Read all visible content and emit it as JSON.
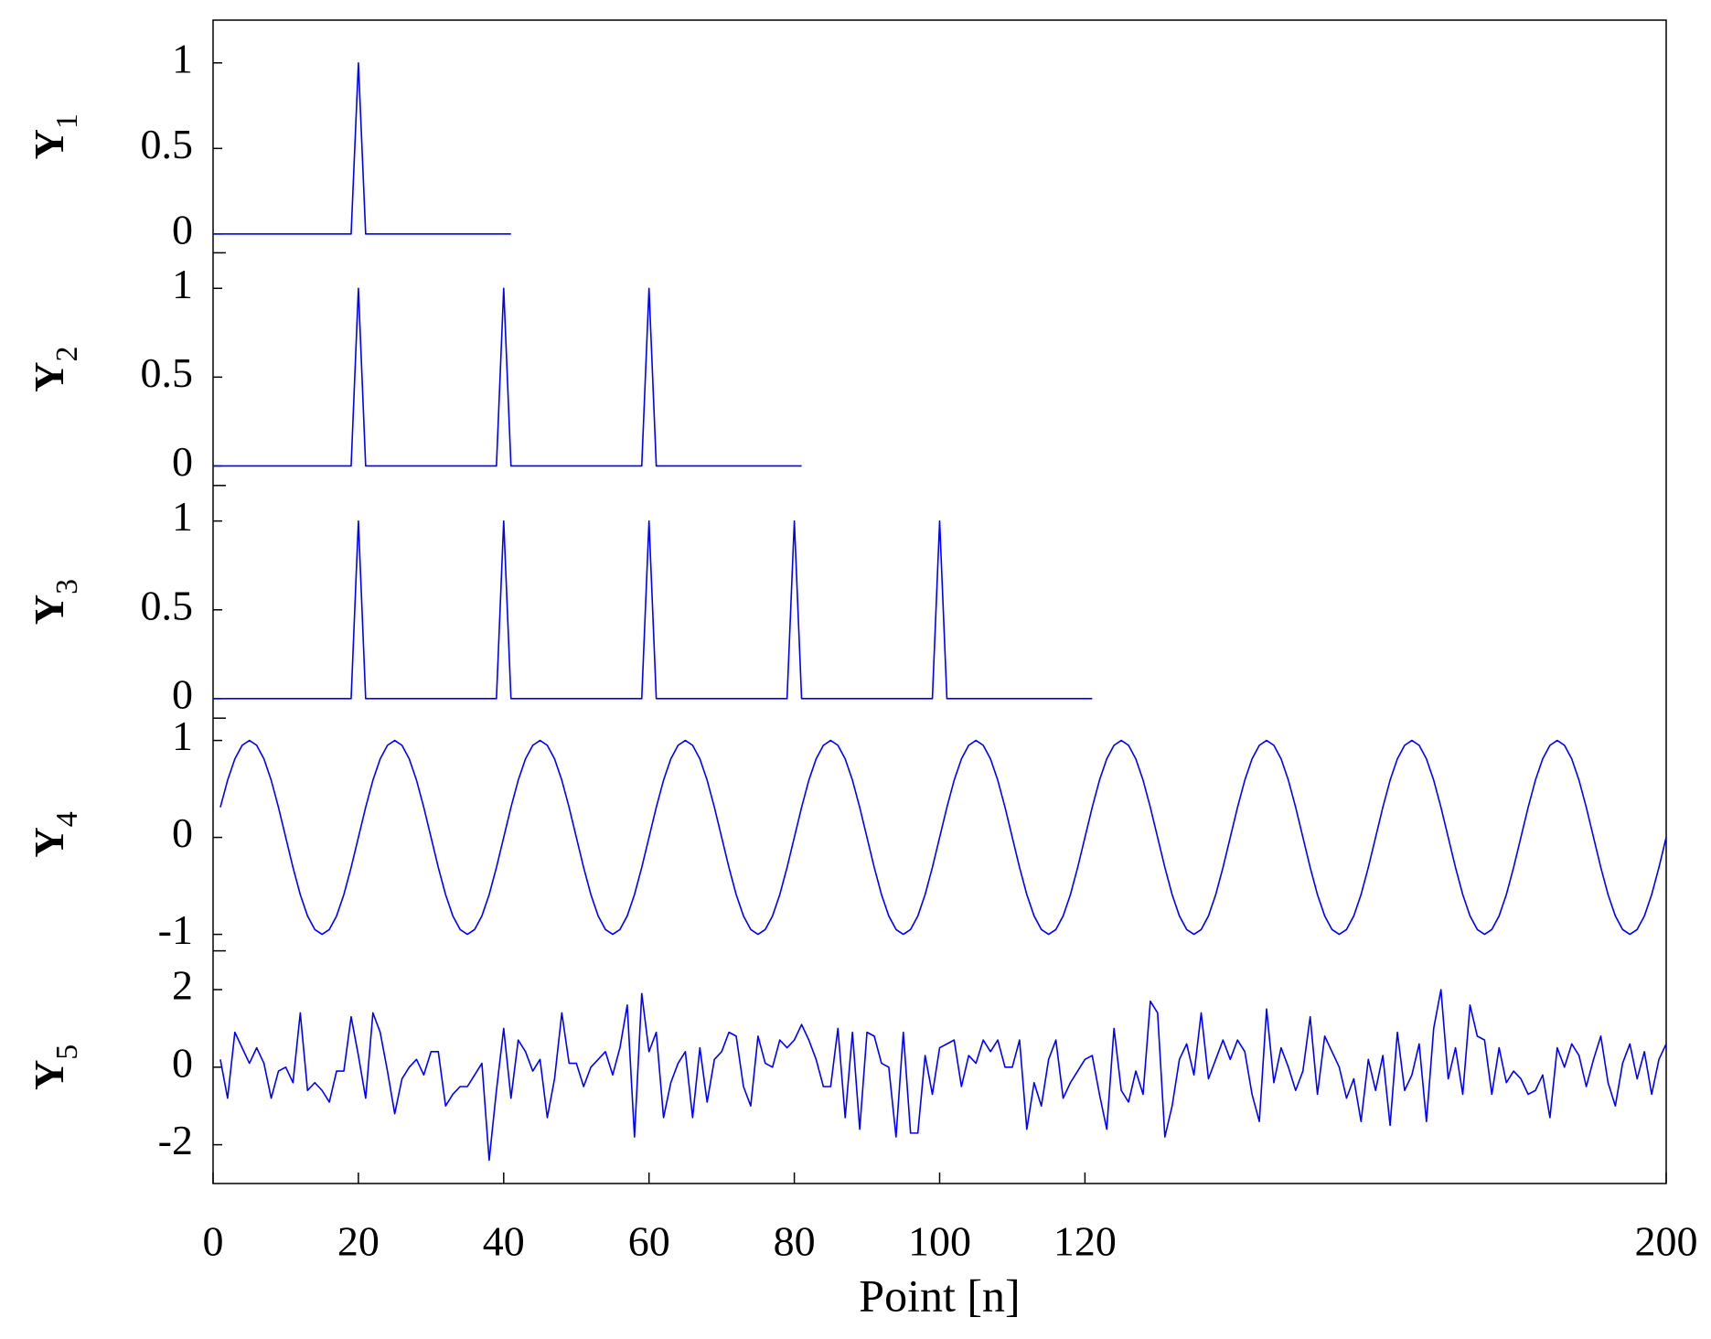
{
  "chart_data": [
    {
      "type": "line",
      "ylabel": "Y1",
      "color": "#0000ff",
      "x": [
        0,
        19,
        20,
        21,
        41
      ],
      "values": [
        0,
        0,
        1,
        0,
        0
      ],
      "xlim": [
        0,
        200
      ],
      "ylim": [
        -0.11,
        1.25
      ],
      "yticks": [
        0,
        0.5,
        1
      ]
    },
    {
      "type": "line",
      "ylabel": "Y2",
      "color": "#0000ff",
      "x": [
        0,
        19,
        20,
        21,
        39,
        40,
        41,
        59,
        60,
        61,
        81
      ],
      "values": [
        0,
        0,
        1,
        0,
        0,
        1,
        0,
        0,
        1,
        0,
        0
      ],
      "xlim": [
        0,
        200
      ],
      "ylim": [
        -0.11,
        1.2
      ],
      "yticks": [
        0,
        0.5,
        1
      ]
    },
    {
      "type": "line",
      "ylabel": "Y3",
      "color": "#0000ff",
      "x": [
        0,
        19,
        20,
        21,
        39,
        40,
        41,
        59,
        60,
        61,
        79,
        80,
        81,
        99,
        100,
        101,
        121
      ],
      "values": [
        0,
        0,
        1,
        0,
        0,
        1,
        0,
        0,
        1,
        0,
        0,
        1,
        0,
        0,
        1,
        0,
        0
      ],
      "xlim": [
        0,
        200
      ],
      "ylim": [
        -0.11,
        1.2
      ],
      "yticks": [
        0,
        0.5,
        1
      ]
    },
    {
      "type": "line",
      "ylabel": "Y4",
      "color": "#0000ff",
      "x": [
        1,
        2,
        3,
        4,
        5,
        6,
        7,
        8,
        9,
        10,
        11,
        12,
        13,
        14,
        15,
        16,
        17,
        18,
        19,
        20,
        21,
        22,
        23,
        24,
        25,
        26,
        27,
        28,
        29,
        30,
        31,
        32,
        33,
        34,
        35,
        36,
        37,
        38,
        39,
        40,
        41,
        42,
        43,
        44,
        45,
        46,
        47,
        48,
        49,
        50,
        51,
        52,
        53,
        54,
        55,
        56,
        57,
        58,
        59,
        60,
        61,
        62,
        63,
        64,
        65,
        66,
        67,
        68,
        69,
        70,
        71,
        72,
        73,
        74,
        75,
        76,
        77,
        78,
        79,
        80,
        81,
        82,
        83,
        84,
        85,
        86,
        87,
        88,
        89,
        90,
        91,
        92,
        93,
        94,
        95,
        96,
        97,
        98,
        99,
        100,
        101,
        102,
        103,
        104,
        105,
        106,
        107,
        108,
        109,
        110,
        111,
        112,
        113,
        114,
        115,
        116,
        117,
        118,
        119,
        120,
        121,
        122,
        123,
        124,
        125,
        126,
        127,
        128,
        129,
        130,
        131,
        132,
        133,
        134,
        135,
        136,
        137,
        138,
        139,
        140,
        141,
        142,
        143,
        144,
        145,
        146,
        147,
        148,
        149,
        150,
        151,
        152,
        153,
        154,
        155,
        156,
        157,
        158,
        159,
        160,
        161,
        162,
        163,
        164,
        165,
        166,
        167,
        168,
        169,
        170,
        171,
        172,
        173,
        174,
        175,
        176,
        177,
        178,
        179,
        180,
        181,
        182,
        183,
        184,
        185,
        186,
        187,
        188,
        189,
        190,
        191,
        192,
        193,
        194,
        195,
        196,
        197,
        198,
        199,
        200
      ],
      "values": [
        0.31,
        0.59,
        0.81,
        0.95,
        1,
        0.95,
        0.81,
        0.59,
        0.31,
        0,
        -0.31,
        -0.59,
        -0.81,
        -0.95,
        -1,
        -0.95,
        -0.81,
        -0.59,
        -0.31,
        0,
        0.31,
        0.59,
        0.81,
        0.95,
        1,
        0.95,
        0.81,
        0.59,
        0.31,
        0,
        -0.31,
        -0.59,
        -0.81,
        -0.95,
        -1,
        -0.95,
        -0.81,
        -0.59,
        -0.31,
        0,
        0.31,
        0.59,
        0.81,
        0.95,
        1,
        0.95,
        0.81,
        0.59,
        0.31,
        0,
        -0.31,
        -0.59,
        -0.81,
        -0.95,
        -1,
        -0.95,
        -0.81,
        -0.59,
        -0.31,
        0,
        0.31,
        0.59,
        0.81,
        0.95,
        1,
        0.95,
        0.81,
        0.59,
        0.31,
        0,
        -0.31,
        -0.59,
        -0.81,
        -0.95,
        -1,
        -0.95,
        -0.81,
        -0.59,
        -0.31,
        0,
        0.31,
        0.59,
        0.81,
        0.95,
        1,
        0.95,
        0.81,
        0.59,
        0.31,
        0,
        -0.31,
        -0.59,
        -0.81,
        -0.95,
        -1,
        -0.95,
        -0.81,
        -0.59,
        -0.31,
        0,
        0.31,
        0.59,
        0.81,
        0.95,
        1,
        0.95,
        0.81,
        0.59,
        0.31,
        0,
        -0.31,
        -0.59,
        -0.81,
        -0.95,
        -1,
        -0.95,
        -0.81,
        -0.59,
        -0.31,
        0,
        0.31,
        0.59,
        0.81,
        0.95,
        1,
        0.95,
        0.81,
        0.59,
        0.31,
        0,
        -0.31,
        -0.59,
        -0.81,
        -0.95,
        -1,
        -0.95,
        -0.81,
        -0.59,
        -0.31,
        0,
        0.31,
        0.59,
        0.81,
        0.95,
        1,
        0.95,
        0.81,
        0.59,
        0.31,
        0,
        -0.31,
        -0.59,
        -0.81,
        -0.95,
        -1,
        -0.95,
        -0.81,
        -0.59,
        -0.31,
        0,
        0.31,
        0.59,
        0.81,
        0.95,
        1,
        0.95,
        0.81,
        0.59,
        0.31,
        0,
        -0.31,
        -0.59,
        -0.81,
        -0.95,
        -1,
        -0.95,
        -0.81,
        -0.59,
        -0.31,
        0,
        0.31,
        0.59,
        0.81,
        0.95,
        1,
        0.95,
        0.81,
        0.59,
        0.31,
        0,
        -0.31,
        -0.59,
        -0.81,
        -0.95,
        -1,
        -0.95,
        -0.81,
        -0.59,
        -0.31,
        0
      ],
      "xlim": [
        0,
        200
      ],
      "ylim": [
        -1.17,
        1.23
      ],
      "yticks": [
        -1,
        0,
        1
      ]
    },
    {
      "type": "line",
      "ylabel": "Y5",
      "color": "#0000ff",
      "xlabel": "Point [n]",
      "x": [
        1,
        2,
        3,
        4,
        5,
        6,
        7,
        8,
        9,
        10,
        11,
        12,
        13,
        14,
        15,
        16,
        17,
        18,
        19,
        20,
        21,
        22,
        23,
        24,
        25,
        26,
        27,
        28,
        29,
        30,
        31,
        32,
        33,
        34,
        35,
        36,
        37,
        38,
        39,
        40,
        41,
        42,
        43,
        44,
        45,
        46,
        47,
        48,
        49,
        50,
        51,
        52,
        53,
        54,
        55,
        56,
        57,
        58,
        59,
        60,
        61,
        62,
        63,
        64,
        65,
        66,
        67,
        68,
        69,
        70,
        71,
        72,
        73,
        74,
        75,
        76,
        77,
        78,
        79,
        80,
        81,
        82,
        83,
        84,
        85,
        86,
        87,
        88,
        89,
        90,
        91,
        92,
        93,
        94,
        95,
        96,
        97,
        98,
        99,
        100,
        101,
        102,
        103,
        104,
        105,
        106,
        107,
        108,
        109,
        110,
        111,
        112,
        113,
        114,
        115,
        116,
        117,
        118,
        119,
        120,
        121,
        122,
        123,
        124,
        125,
        126,
        127,
        128,
        129,
        130,
        131,
        132,
        133,
        134,
        135,
        136,
        137,
        138,
        139,
        140,
        141,
        142,
        143,
        144,
        145,
        146,
        147,
        148,
        149,
        150,
        151,
        152,
        153,
        154,
        155,
        156,
        157,
        158,
        159,
        160,
        161,
        162,
        163,
        164,
        165,
        166,
        167,
        168,
        169,
        170,
        171,
        172,
        173,
        174,
        175,
        176,
        177,
        178,
        179,
        180,
        181,
        182,
        183,
        184,
        185,
        186,
        187,
        188,
        189,
        190,
        191,
        192,
        193,
        194,
        195,
        196,
        197,
        198,
        199,
        200
      ],
      "values": [
        0.2,
        -0.8,
        0.9,
        0.5,
        0.1,
        0.5,
        0.1,
        -0.8,
        -0.1,
        0,
        -0.4,
        1.4,
        -0.6,
        -0.4,
        -0.6,
        -0.9,
        -0.1,
        -0.1,
        1.3,
        0.3,
        -0.8,
        1.4,
        0.9,
        -0.1,
        -1.2,
        -0.3,
        0,
        0.2,
        -0.2,
        0.4,
        0.4,
        -1,
        -0.7,
        -0.5,
        -0.5,
        -0.2,
        0.1,
        -2.4,
        -0.6,
        1,
        -0.8,
        0.7,
        0.4,
        -0.1,
        0.2,
        -1.3,
        -0.3,
        1.4,
        0.1,
        0.1,
        -0.5,
        0,
        0.2,
        0.4,
        -0.2,
        0.5,
        1.6,
        -1.8,
        1.9,
        0.4,
        0.9,
        -1.3,
        -0.4,
        0.1,
        0.4,
        -1.3,
        0.5,
        -0.9,
        0.2,
        0.4,
        0.9,
        0.8,
        -0.5,
        -1,
        0.8,
        0.1,
        0,
        0.7,
        0.5,
        0.7,
        1.1,
        0.7,
        0.2,
        -0.5,
        -0.5,
        1,
        -1.3,
        0.9,
        -1.6,
        0.9,
        0.8,
        0.1,
        0,
        -1.8,
        0.9,
        -1.7,
        -1.7,
        0.3,
        -0.7,
        0.5,
        0.6,
        0.7,
        -0.5,
        0.3,
        0.1,
        0.7,
        0.4,
        0.7,
        0,
        0,
        0.7,
        -1.6,
        -0.4,
        -1,
        0.2,
        0.7,
        -0.8,
        -0.4,
        -0.1,
        0.2,
        0.3,
        -0.7,
        -1.6,
        1,
        -0.6,
        -0.9,
        -0.1,
        -0.7,
        1.7,
        1.4,
        -1.8,
        -1,
        0.2,
        0.6,
        -0.2,
        1.4,
        -0.3,
        0.2,
        0.7,
        0.2,
        0.7,
        0.4,
        -0.7,
        -1.4,
        1.5,
        -0.4,
        0.5,
        0,
        -0.6,
        -0.1,
        1.3,
        -0.7,
        0.8,
        0.4,
        0,
        -0.8,
        -0.3,
        -1.4,
        0.2,
        -0.6,
        0.3,
        -1.5,
        0.9,
        -0.6,
        -0.2,
        0.6,
        -1.4,
        1,
        2,
        -0.3,
        0.5,
        -0.7,
        1.6,
        0.8,
        0.7,
        -0.7,
        0.5,
        -0.4,
        -0.1,
        -0.3,
        -0.7,
        -0.6,
        -0.2,
        -1.3,
        0.5,
        0,
        0.6,
        0.3,
        -0.5,
        0.2,
        0.8,
        -0.4,
        -1,
        0.1,
        0.6,
        -0.3,
        0.4,
        -0.7,
        0.2,
        0.6
      ],
      "xlim": [
        0,
        200
      ],
      "ylim": [
        -3,
        3
      ],
      "yticks": [
        -2,
        0,
        2
      ],
      "xticks": [
        0,
        20,
        40,
        60,
        80,
        100,
        120,
        200
      ]
    }
  ]
}
